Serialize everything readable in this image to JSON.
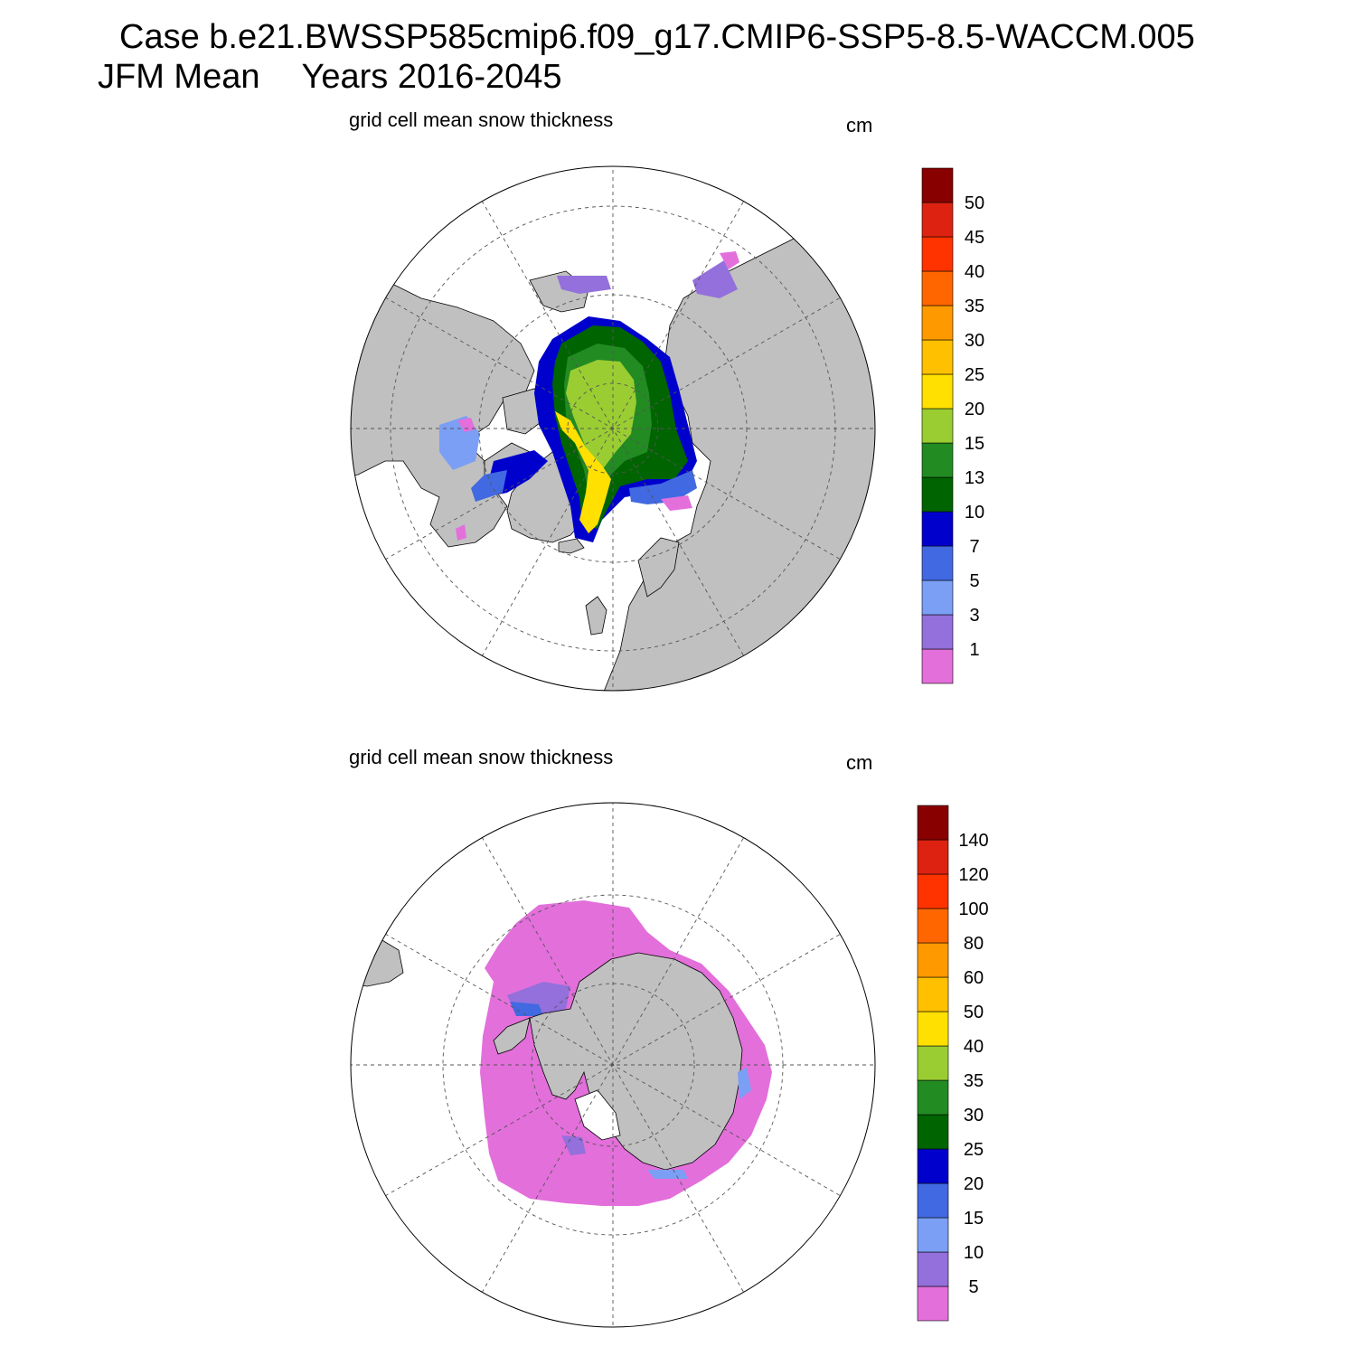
{
  "header": {
    "case_title": "Case b.e21.BWSSP585cmip6.f09_g17.CMIP6-SSP5-8.5-WACCM.005",
    "season": "JFM Mean",
    "years": "Years 2016-2045"
  },
  "panels": [
    {
      "id": "north",
      "hemisphere": "Northern Hemisphere",
      "subtitle": "grid cell mean snow thickness",
      "units": "cm",
      "colorbar": {
        "levels": [
          "1",
          "3",
          "5",
          "7",
          "10",
          "13",
          "15",
          "20",
          "25",
          "30",
          "35",
          "40",
          "45",
          "50"
        ],
        "colors": [
          "#e36fdb",
          "#9370db",
          "#7b9ff5",
          "#4169e1",
          "#0000cd",
          "#006400",
          "#228b22",
          "#9acd32",
          "#ffe000",
          "#ffc000",
          "#ff9900",
          "#ff6600",
          "#ff3300",
          "#dd2211",
          "#880000"
        ]
      }
    },
    {
      "id": "south",
      "hemisphere": "Southern Hemisphere",
      "subtitle": "grid cell mean snow thickness",
      "units": "cm",
      "colorbar": {
        "levels": [
          "5",
          "10",
          "15",
          "20",
          "25",
          "30",
          "35",
          "40",
          "50",
          "60",
          "80",
          "100",
          "120",
          "140"
        ],
        "colors": [
          "#e36fdb",
          "#9370db",
          "#7b9ff5",
          "#4169e1",
          "#0000cd",
          "#006400",
          "#228b22",
          "#9acd32",
          "#ffe000",
          "#ffc000",
          "#ff9900",
          "#ff6600",
          "#ff3300",
          "#dd2211",
          "#880000"
        ]
      }
    }
  ],
  "colors": {
    "land": "#c0c0c0",
    "ocean": "#ffffff",
    "grid": "#555555"
  }
}
